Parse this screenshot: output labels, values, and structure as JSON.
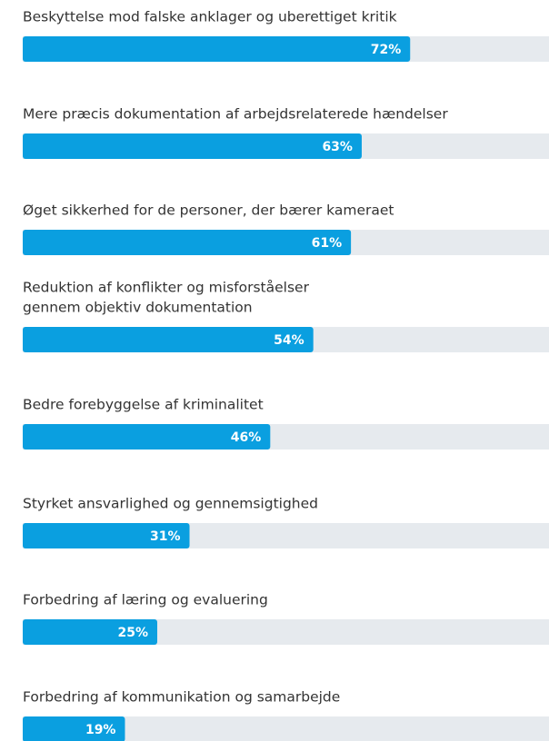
{
  "chart_data": {
    "type": "bar",
    "orientation": "horizontal",
    "categories": [
      [
        "Beskyttelse mod falske anklager og uberettiget kritik"
      ],
      [
        "Mere præcis dokumentation af arbejdsrelaterede hændelser"
      ],
      [
        "Øget sikkerhed for de personer, der bærer kameraet"
      ],
      [
        "Reduktion af konflikter og misforståelser",
        "gennem objektiv dokumentation"
      ],
      [
        "Bedre forebyggelse af kriminalitet"
      ],
      [
        "Styrket ansvarlighed og gennemsigtighed"
      ],
      [
        "Forbedring af læring og evaluering"
      ],
      [
        "Forbedring af kommunikation og samarbejde"
      ]
    ],
    "values": [
      72,
      63,
      61,
      54,
      46,
      31,
      25,
      19
    ],
    "value_labels": [
      "72%",
      "63%",
      "61%",
      "54%",
      "46%",
      "31%",
      "25%",
      "19%"
    ],
    "color": "#0a9fe0",
    "track_color": "#e6eaee",
    "xlim": [
      0,
      100
    ]
  }
}
